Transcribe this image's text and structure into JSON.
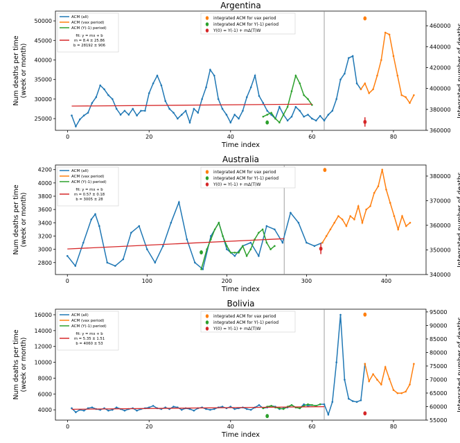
{
  "figure": {
    "colors": {
      "all": "#1f77b4",
      "vax": "#ff7f0e",
      "ym1": "#2ca02c",
      "fit": "#d62728",
      "integrated_vax": "#ff7f0e",
      "integrated_ym1": "#2ca02c",
      "y0": "#d62728"
    }
  },
  "chart_data": [
    {
      "type": "line",
      "title": "Argentina",
      "xlabel": "Time index",
      "ylabel": "Num deaths per time (week or month)",
      "y2label": "Integrated number of deaths",
      "xlim": [
        -3,
        88
      ],
      "ylim": [
        22000,
        52500
      ],
      "y2lim": [
        360000,
        474000
      ],
      "xticks": [
        0,
        20,
        40,
        60,
        80
      ],
      "yticks": [
        25000,
        30000,
        35000,
        40000,
        45000,
        50000
      ],
      "y2ticks": [
        360000,
        380000,
        400000,
        420000,
        440000,
        460000
      ],
      "vline_x": 63,
      "legend_left": [
        "ACM (all)",
        "ACM (vax period)",
        "ACM (Y(-1) period)",
        "fit: y = mx + b",
        "m = 8.4 ± 25.86",
        "b = 28192 ± 906"
      ],
      "legend_right": [
        "integrated ACM for vax period",
        "integrated ACM for Y(-1) period",
        "Y(0) = Y(-1) + mΔ(T)W"
      ],
      "series": [
        {
          "name": "ACM (all)",
          "role": "all",
          "x": [
            1,
            2,
            3,
            4,
            5,
            6,
            7,
            8,
            9,
            10,
            11,
            12,
            13,
            14,
            15,
            16,
            17,
            18,
            19,
            20,
            21,
            22,
            23,
            24,
            25,
            26,
            27,
            28,
            29,
            30,
            31,
            32,
            33,
            34,
            35,
            36,
            37,
            38,
            39,
            40,
            41,
            42,
            43,
            44,
            45,
            46,
            47,
            48,
            49,
            50,
            51,
            52,
            53,
            54,
            55,
            56,
            57,
            58,
            59,
            60,
            61,
            62,
            63,
            64,
            65,
            66,
            67,
            68,
            69,
            70,
            71,
            72
          ],
          "y": [
            25800,
            23000,
            24800,
            25800,
            26500,
            29000,
            30500,
            33500,
            32500,
            31000,
            30000,
            27500,
            26000,
            27000,
            26000,
            27500,
            25800,
            27000,
            27000,
            31500,
            34000,
            36000,
            33500,
            29500,
            27500,
            26500,
            25000,
            26000,
            27000,
            24000,
            27500,
            26500,
            30000,
            33000,
            37500,
            36000,
            30000,
            27500,
            26000,
            24000,
            26000,
            25000,
            27000,
            30500,
            33000,
            36000,
            30800,
            29000,
            27000,
            26000,
            25000,
            28000,
            26000,
            24500,
            25500,
            28000,
            27000,
            25500,
            26000,
            25000,
            24500,
            25700,
            24500,
            26000,
            27000,
            30000,
            35000,
            36500,
            40500,
            41000,
            34000,
            32500
          ]
        },
        {
          "name": "ACM (Y(-1) period)",
          "role": "ym1",
          "x": [
            48,
            49,
            50,
            51,
            52,
            53,
            54,
            55,
            56,
            57,
            58,
            59,
            60
          ],
          "y": [
            25500,
            26000,
            26500,
            25000,
            24000,
            26000,
            28000,
            32000,
            36000,
            34000,
            31000,
            30000,
            28500
          ]
        },
        {
          "name": "ACM (vax period)",
          "role": "vax",
          "x": [
            72,
            73,
            74,
            75,
            76,
            77,
            78,
            79,
            80,
            81,
            82,
            83,
            84,
            85
          ],
          "y": [
            32500,
            34000,
            31500,
            32500,
            36000,
            40000,
            47000,
            46500,
            41000,
            36000,
            31000,
            30500,
            29000,
            31000
          ]
        }
      ],
      "fit_line": {
        "x": [
          1,
          60
        ],
        "y": [
          28200,
          28700
        ]
      },
      "integrated_points": [
        {
          "label": "integrated ACM for vax period",
          "role": "integrated_vax",
          "x": 73,
          "y2": 467000
        },
        {
          "label": "integrated ACM for Y(-1) period",
          "role": "integrated_ym1",
          "x": 49,
          "y2": 367500
        },
        {
          "label": "Y(0) = Y(-1) + mΔ(T)W",
          "role": "y0",
          "x": 73,
          "y2": 368000,
          "yerr2": 4500
        }
      ]
    },
    {
      "type": "line",
      "title": "Australia",
      "xlabel": "Time index",
      "ylabel": "Num deaths per time (week or month)",
      "y2label": "Integrated number of deaths",
      "xlim": [
        -15,
        450
      ],
      "ylim": [
        2620,
        4270
      ],
      "y2lim": [
        340000,
        384500
      ],
      "xticks": [
        0,
        100,
        200,
        300,
        400
      ],
      "yticks": [
        2800,
        3000,
        3200,
        3400,
        3600,
        3800,
        4000,
        4200
      ],
      "y2ticks": [
        340000,
        350000,
        360000,
        370000,
        380000
      ],
      "vline_x": 272,
      "legend_left": [
        "ACM (all)",
        "ACM (vax period)",
        "ACM (Y(-1) period)",
        "fit: y = mx + b",
        "m = 0.57 ± 0.18",
        "b = 3005 ± 28"
      ],
      "legend_right": [
        "integrated ACM for vax period",
        "integrated ACM for Y(-1) period",
        "Y(0) = Y(-1) + mΔ(T)W"
      ],
      "series": [
        {
          "name": "ACM (all)",
          "role": "all",
          "x": [
            0,
            10,
            20,
            30,
            35,
            40,
            50,
            60,
            70,
            80,
            90,
            100,
            110,
            120,
            130,
            140,
            150,
            160,
            170,
            180,
            190,
            200,
            210,
            220,
            230,
            240,
            250,
            260,
            270,
            280,
            290,
            300,
            310,
            320
          ],
          "y": [
            2900,
            2750,
            3100,
            3450,
            3530,
            3350,
            2800,
            2750,
            2850,
            3250,
            3350,
            3000,
            2800,
            3050,
            3400,
            3710,
            3150,
            2800,
            2700,
            3200,
            3400,
            3000,
            2900,
            3050,
            3100,
            2900,
            3350,
            3300,
            3100,
            3550,
            3400,
            3100,
            3050,
            3100
          ]
        },
        {
          "name": "ACM (Y(-1) period)",
          "role": "ym1",
          "x": [
            168,
            175,
            180,
            185,
            190,
            195,
            200,
            205,
            210,
            215,
            220,
            225,
            230,
            235,
            240,
            245,
            250,
            255,
            260
          ],
          "y": [
            2700,
            3000,
            3150,
            3300,
            3400,
            3200,
            3050,
            2950,
            2950,
            2950,
            3050,
            2900,
            3000,
            3150,
            3250,
            3300,
            3100,
            3000,
            3050
          ]
        },
        {
          "name": "ACM (vax period)",
          "role": "vax",
          "x": [
            320,
            325,
            330,
            335,
            340,
            345,
            350,
            355,
            360,
            365,
            370,
            375,
            380,
            385,
            390,
            395,
            400,
            405,
            410,
            415,
            420,
            425,
            430
          ],
          "y": [
            3100,
            3200,
            3300,
            3400,
            3500,
            3450,
            3350,
            3500,
            3450,
            3650,
            3400,
            3600,
            3650,
            3850,
            3950,
            4200,
            3900,
            3700,
            3500,
            3300,
            3500,
            3350,
            3400
          ]
        }
      ],
      "fit_line": {
        "x": [
          0,
          272
        ],
        "y": [
          3005,
          3160
        ]
      },
      "integrated_points": [
        {
          "label": "integrated ACM for vax period",
          "role": "integrated_vax",
          "x": 323,
          "y2": 382500
        },
        {
          "label": "integrated ACM for Y(-1) period",
          "role": "integrated_ym1",
          "x": 168,
          "y2": 349000
        },
        {
          "label": "Y(0) = Y(-1) + mΔ(T)W",
          "role": "y0",
          "x": 318,
          "y2": 350500,
          "yerr2": 2200
        }
      ]
    },
    {
      "type": "line",
      "title": "Bolivia",
      "xlabel": "Time index",
      "ylabel": "Num deaths per time (week or month)",
      "y2label": "Integrated number of deaths",
      "xlim": [
        -3,
        88
      ],
      "ylim": [
        2700,
        16700
      ],
      "y2lim": [
        55000,
        96000
      ],
      "xticks": [
        0,
        20,
        40,
        60,
        80
      ],
      "yticks": [
        4000,
        6000,
        8000,
        10000,
        12000,
        14000,
        16000
      ],
      "y2ticks": [
        55000,
        60000,
        65000,
        70000,
        75000,
        80000,
        85000,
        90000,
        95000
      ],
      "vline_x": 63,
      "legend_left": [
        "ACM (all)",
        "ACM (vax period)",
        "ACM (Y(-1) period)",
        "fit: y = mx + b",
        "m = 5.35 ± 1.51",
        "b = 4060 ± 53"
      ],
      "legend_right": [
        "integrated ACM for vax period",
        "integrated ACM for Y(-1) period",
        "Y(0) = Y(-1) + mΔ(T)W"
      ],
      "series": [
        {
          "name": "ACM (all)",
          "role": "all",
          "x": [
            1,
            2,
            3,
            4,
            5,
            6,
            7,
            8,
            9,
            10,
            11,
            12,
            13,
            14,
            15,
            16,
            17,
            18,
            19,
            20,
            21,
            22,
            23,
            24,
            25,
            26,
            27,
            28,
            29,
            30,
            31,
            32,
            33,
            34,
            35,
            36,
            37,
            38,
            39,
            40,
            41,
            42,
            43,
            44,
            45,
            46,
            47,
            48,
            49,
            50,
            51,
            52,
            53,
            54,
            55,
            56,
            57,
            58,
            59,
            60,
            61,
            62,
            63,
            64,
            65,
            66,
            67,
            68,
            69,
            70,
            71,
            72,
            73
          ],
          "y": [
            4200,
            3700,
            4000,
            3900,
            4200,
            4300,
            4100,
            4000,
            4200,
            3900,
            4000,
            4300,
            4100,
            3900,
            4100,
            4200,
            3900,
            4100,
            4200,
            4300,
            4500,
            4200,
            4100,
            4300,
            4100,
            4400,
            4300,
            4000,
            4200,
            4100,
            3900,
            4200,
            4300,
            4100,
            4000,
            4100,
            4300,
            4400,
            4200,
            4400,
            4100,
            4200,
            4300,
            4100,
            4000,
            4300,
            4600,
            4200,
            4300,
            4500,
            4400,
            4100,
            4200,
            4300,
            4600,
            4300,
            4200,
            4700,
            4500,
            4600,
            4500,
            4700,
            4700,
            3400,
            5000,
            10000,
            16000,
            7800,
            5400,
            5100,
            5000,
            5200,
            9800
          ]
        },
        {
          "name": "ACM (Y(-1) period)",
          "role": "ym1",
          "x": [
            48,
            49,
            50,
            51,
            52,
            53,
            54,
            55,
            56,
            57,
            58,
            59,
            60,
            61,
            62
          ],
          "y": [
            4200,
            4400,
            4500,
            4300,
            4200,
            4100,
            4400,
            4600,
            4300,
            4200,
            4500,
            4700,
            4600,
            4500,
            4700
          ]
        },
        {
          "name": "ACM (vax period)",
          "role": "vax",
          "x": [
            73,
            74,
            75,
            76,
            77,
            78,
            79,
            80,
            81,
            82,
            83,
            84,
            85
          ],
          "y": [
            9800,
            7600,
            8500,
            7800,
            7200,
            9400,
            7900,
            6500,
            6100,
            6100,
            6300,
            7200,
            9800
          ]
        }
      ],
      "fit_line": {
        "x": [
          1,
          63
        ],
        "y": [
          4065,
          4400
        ]
      },
      "integrated_points": [
        {
          "label": "integrated ACM for vax period",
          "role": "integrated_vax",
          "x": 73,
          "y2": 94000
        },
        {
          "label": "integrated ACM for Y(-1) period",
          "role": "integrated_ym1",
          "x": 49,
          "y2": 56500
        },
        {
          "label": "Y(0) = Y(-1) + mΔ(T)W",
          "role": "y0",
          "x": 73,
          "y2": 57500,
          "yerr2": 0
        }
      ]
    }
  ]
}
